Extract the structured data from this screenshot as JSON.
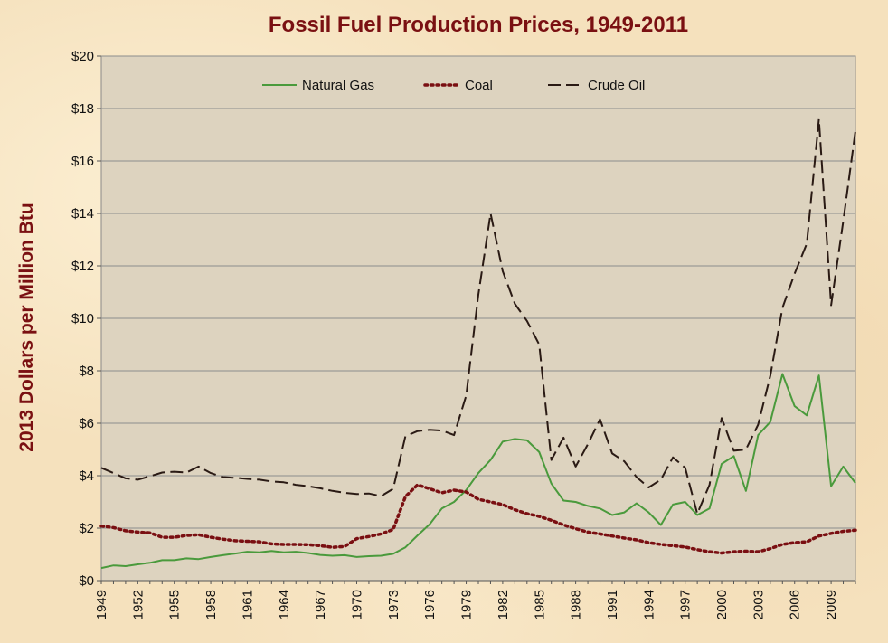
{
  "chart_data": {
    "type": "line",
    "title": "Fossil Fuel Production Prices, 1949-2011",
    "xlabel": "",
    "ylabel": "2013 Dollars per Million Btu",
    "ylim": [
      0,
      20
    ],
    "yticks": [
      "$0",
      "$2",
      "$4",
      "$6",
      "$8",
      "$10",
      "$12",
      "$14",
      "$16",
      "$18",
      "$20"
    ],
    "xlim": [
      1949,
      2011
    ],
    "xticks": [
      "1949",
      "1952",
      "1955",
      "1958",
      "1961",
      "1964",
      "1967",
      "1970",
      "1973",
      "1976",
      "1979",
      "1982",
      "1985",
      "1988",
      "1991",
      "1994",
      "1997",
      "2000",
      "2003",
      "2006",
      "2009"
    ],
    "grid": "horizontal",
    "legend_position": "top",
    "x": [
      1949,
      1950,
      1951,
      1952,
      1953,
      1954,
      1955,
      1956,
      1957,
      1958,
      1959,
      1960,
      1961,
      1962,
      1963,
      1964,
      1965,
      1966,
      1967,
      1968,
      1969,
      1970,
      1971,
      1972,
      1973,
      1974,
      1975,
      1976,
      1977,
      1978,
      1979,
      1980,
      1981,
      1982,
      1983,
      1984,
      1985,
      1986,
      1987,
      1988,
      1989,
      1990,
      1991,
      1992,
      1993,
      1994,
      1995,
      1996,
      1997,
      1998,
      1999,
      2000,
      2001,
      2002,
      2003,
      2004,
      2005,
      2006,
      2007,
      2008,
      2009,
      2010,
      2011
    ],
    "series": [
      {
        "name": "Natural Gas",
        "color": "#4a9a3c",
        "style": "solid",
        "values": [
          0.48,
          0.58,
          0.55,
          0.62,
          0.68,
          0.78,
          0.78,
          0.85,
          0.82,
          0.9,
          0.97,
          1.03,
          1.1,
          1.08,
          1.13,
          1.08,
          1.1,
          1.05,
          0.98,
          0.95,
          0.97,
          0.9,
          0.93,
          0.95,
          1.02,
          1.27,
          1.72,
          2.15,
          2.75,
          3.0,
          3.45,
          4.1,
          4.6,
          5.3,
          5.4,
          5.35,
          4.9,
          3.7,
          3.05,
          3.0,
          2.85,
          2.75,
          2.5,
          2.6,
          2.95,
          2.6,
          2.12,
          2.9,
          3.0,
          2.5,
          2.75,
          4.45,
          4.75,
          3.42,
          5.55,
          6.05,
          7.88,
          6.65,
          6.3,
          7.82,
          3.6,
          4.35,
          3.72
        ]
      },
      {
        "name": "Coal",
        "color": "#7a0f12",
        "style": "dotted",
        "values": [
          2.08,
          2.02,
          1.9,
          1.85,
          1.82,
          1.65,
          1.65,
          1.72,
          1.75,
          1.65,
          1.58,
          1.52,
          1.5,
          1.48,
          1.4,
          1.38,
          1.38,
          1.37,
          1.33,
          1.27,
          1.3,
          1.6,
          1.68,
          1.78,
          1.95,
          3.2,
          3.65,
          3.5,
          3.35,
          3.45,
          3.38,
          3.1,
          3.0,
          2.9,
          2.7,
          2.55,
          2.45,
          2.3,
          2.12,
          1.98,
          1.85,
          1.78,
          1.7,
          1.62,
          1.55,
          1.45,
          1.38,
          1.33,
          1.28,
          1.18,
          1.1,
          1.05,
          1.1,
          1.12,
          1.1,
          1.22,
          1.38,
          1.45,
          1.48,
          1.7,
          1.8,
          1.88,
          1.92
        ]
      },
      {
        "name": "Crude Oil",
        "color": "#2a1a14",
        "style": "dashed",
        "values": [
          4.3,
          4.1,
          3.9,
          3.85,
          3.98,
          4.12,
          4.15,
          4.12,
          4.35,
          4.1,
          3.95,
          3.92,
          3.88,
          3.85,
          3.78,
          3.75,
          3.65,
          3.6,
          3.52,
          3.42,
          3.35,
          3.3,
          3.32,
          3.22,
          3.5,
          5.5,
          5.7,
          5.75,
          5.72,
          5.55,
          7.05,
          10.9,
          14.0,
          11.8,
          10.55,
          9.9,
          9.0,
          4.6,
          5.45,
          4.35,
          5.2,
          6.15,
          4.85,
          4.55,
          3.95,
          3.55,
          3.85,
          4.7,
          4.3,
          2.55,
          3.65,
          6.2,
          4.95,
          5.0,
          5.95,
          7.8,
          10.4,
          11.7,
          12.85,
          17.6,
          10.5,
          13.7,
          17.15
        ]
      }
    ]
  }
}
